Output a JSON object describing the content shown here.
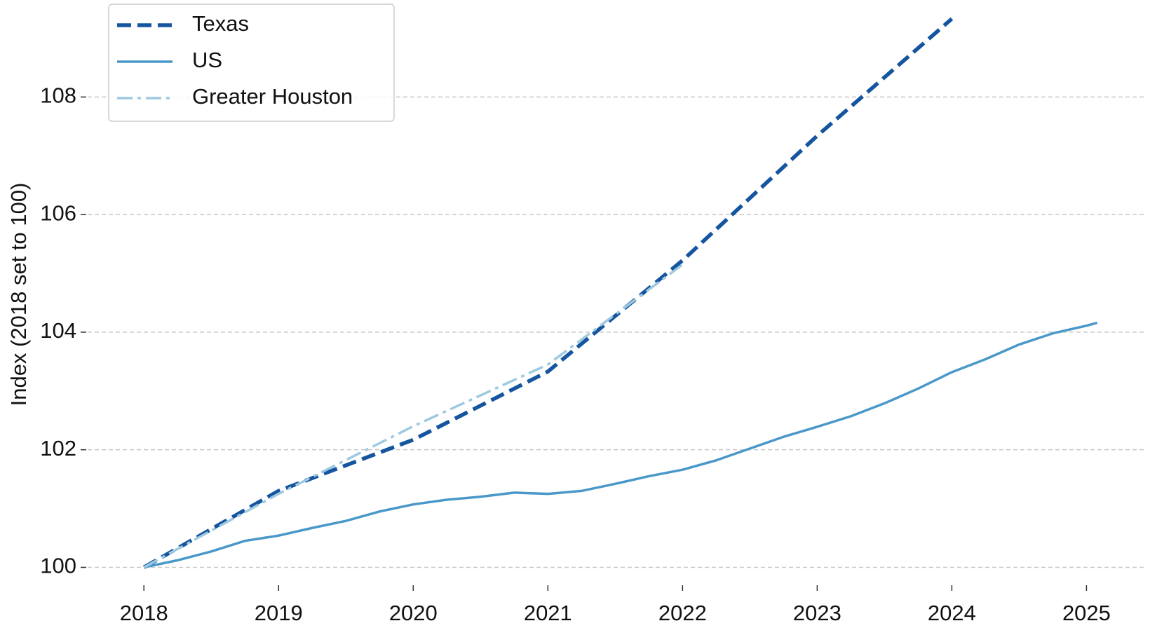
{
  "chart_data": {
    "type": "line",
    "ylabel": "Index (2018 set to 100)",
    "xlim": [
      2017.53,
      2025.43
    ],
    "ylim": [
      99.6,
      109.65
    ],
    "xticks": [
      2018,
      2019,
      2020,
      2021,
      2022,
      2023,
      2024,
      2025
    ],
    "yticks": [
      100,
      102,
      104,
      106,
      108
    ],
    "grid": true,
    "legend": "upper left",
    "series": [
      {
        "name": "Texas",
        "color": "#1555a0",
        "style": "dashed",
        "x": [
          2018,
          2019,
          2020,
          2021,
          2022,
          2023,
          2024
        ],
        "values": [
          100,
          101.3,
          102.17,
          103.33,
          105.22,
          107.34,
          109.33
        ]
      },
      {
        "name": "US",
        "color": "#4a98c9",
        "style": "solid",
        "x": [
          2018,
          2018.25,
          2018.5,
          2018.75,
          2019,
          2019.25,
          2019.5,
          2019.75,
          2020,
          2020.25,
          2020.5,
          2020.75,
          2021,
          2021.25,
          2021.5,
          2021.75,
          2022,
          2022.25,
          2022.5,
          2022.75,
          2023,
          2023.25,
          2023.5,
          2023.75,
          2024,
          2024.25,
          2024.5,
          2024.75,
          2025,
          2025.08
        ],
        "values": [
          100,
          100.12,
          100.27,
          100.45,
          100.54,
          100.67,
          100.79,
          100.95,
          101.07,
          101.15,
          101.2,
          101.27,
          101.25,
          101.3,
          101.42,
          101.55,
          101.66,
          101.82,
          102.02,
          102.22,
          102.39,
          102.57,
          102.79,
          103.04,
          103.32,
          103.54,
          103.79,
          103.98,
          104.11,
          104.16
        ]
      },
      {
        "name": "Greater Houston",
        "color": "#9ecae1",
        "style": "dashdot",
        "x": [
          2018,
          2019,
          2020,
          2021,
          2022
        ],
        "values": [
          100,
          101.25,
          102.4,
          103.45,
          105.15
        ]
      }
    ]
  }
}
